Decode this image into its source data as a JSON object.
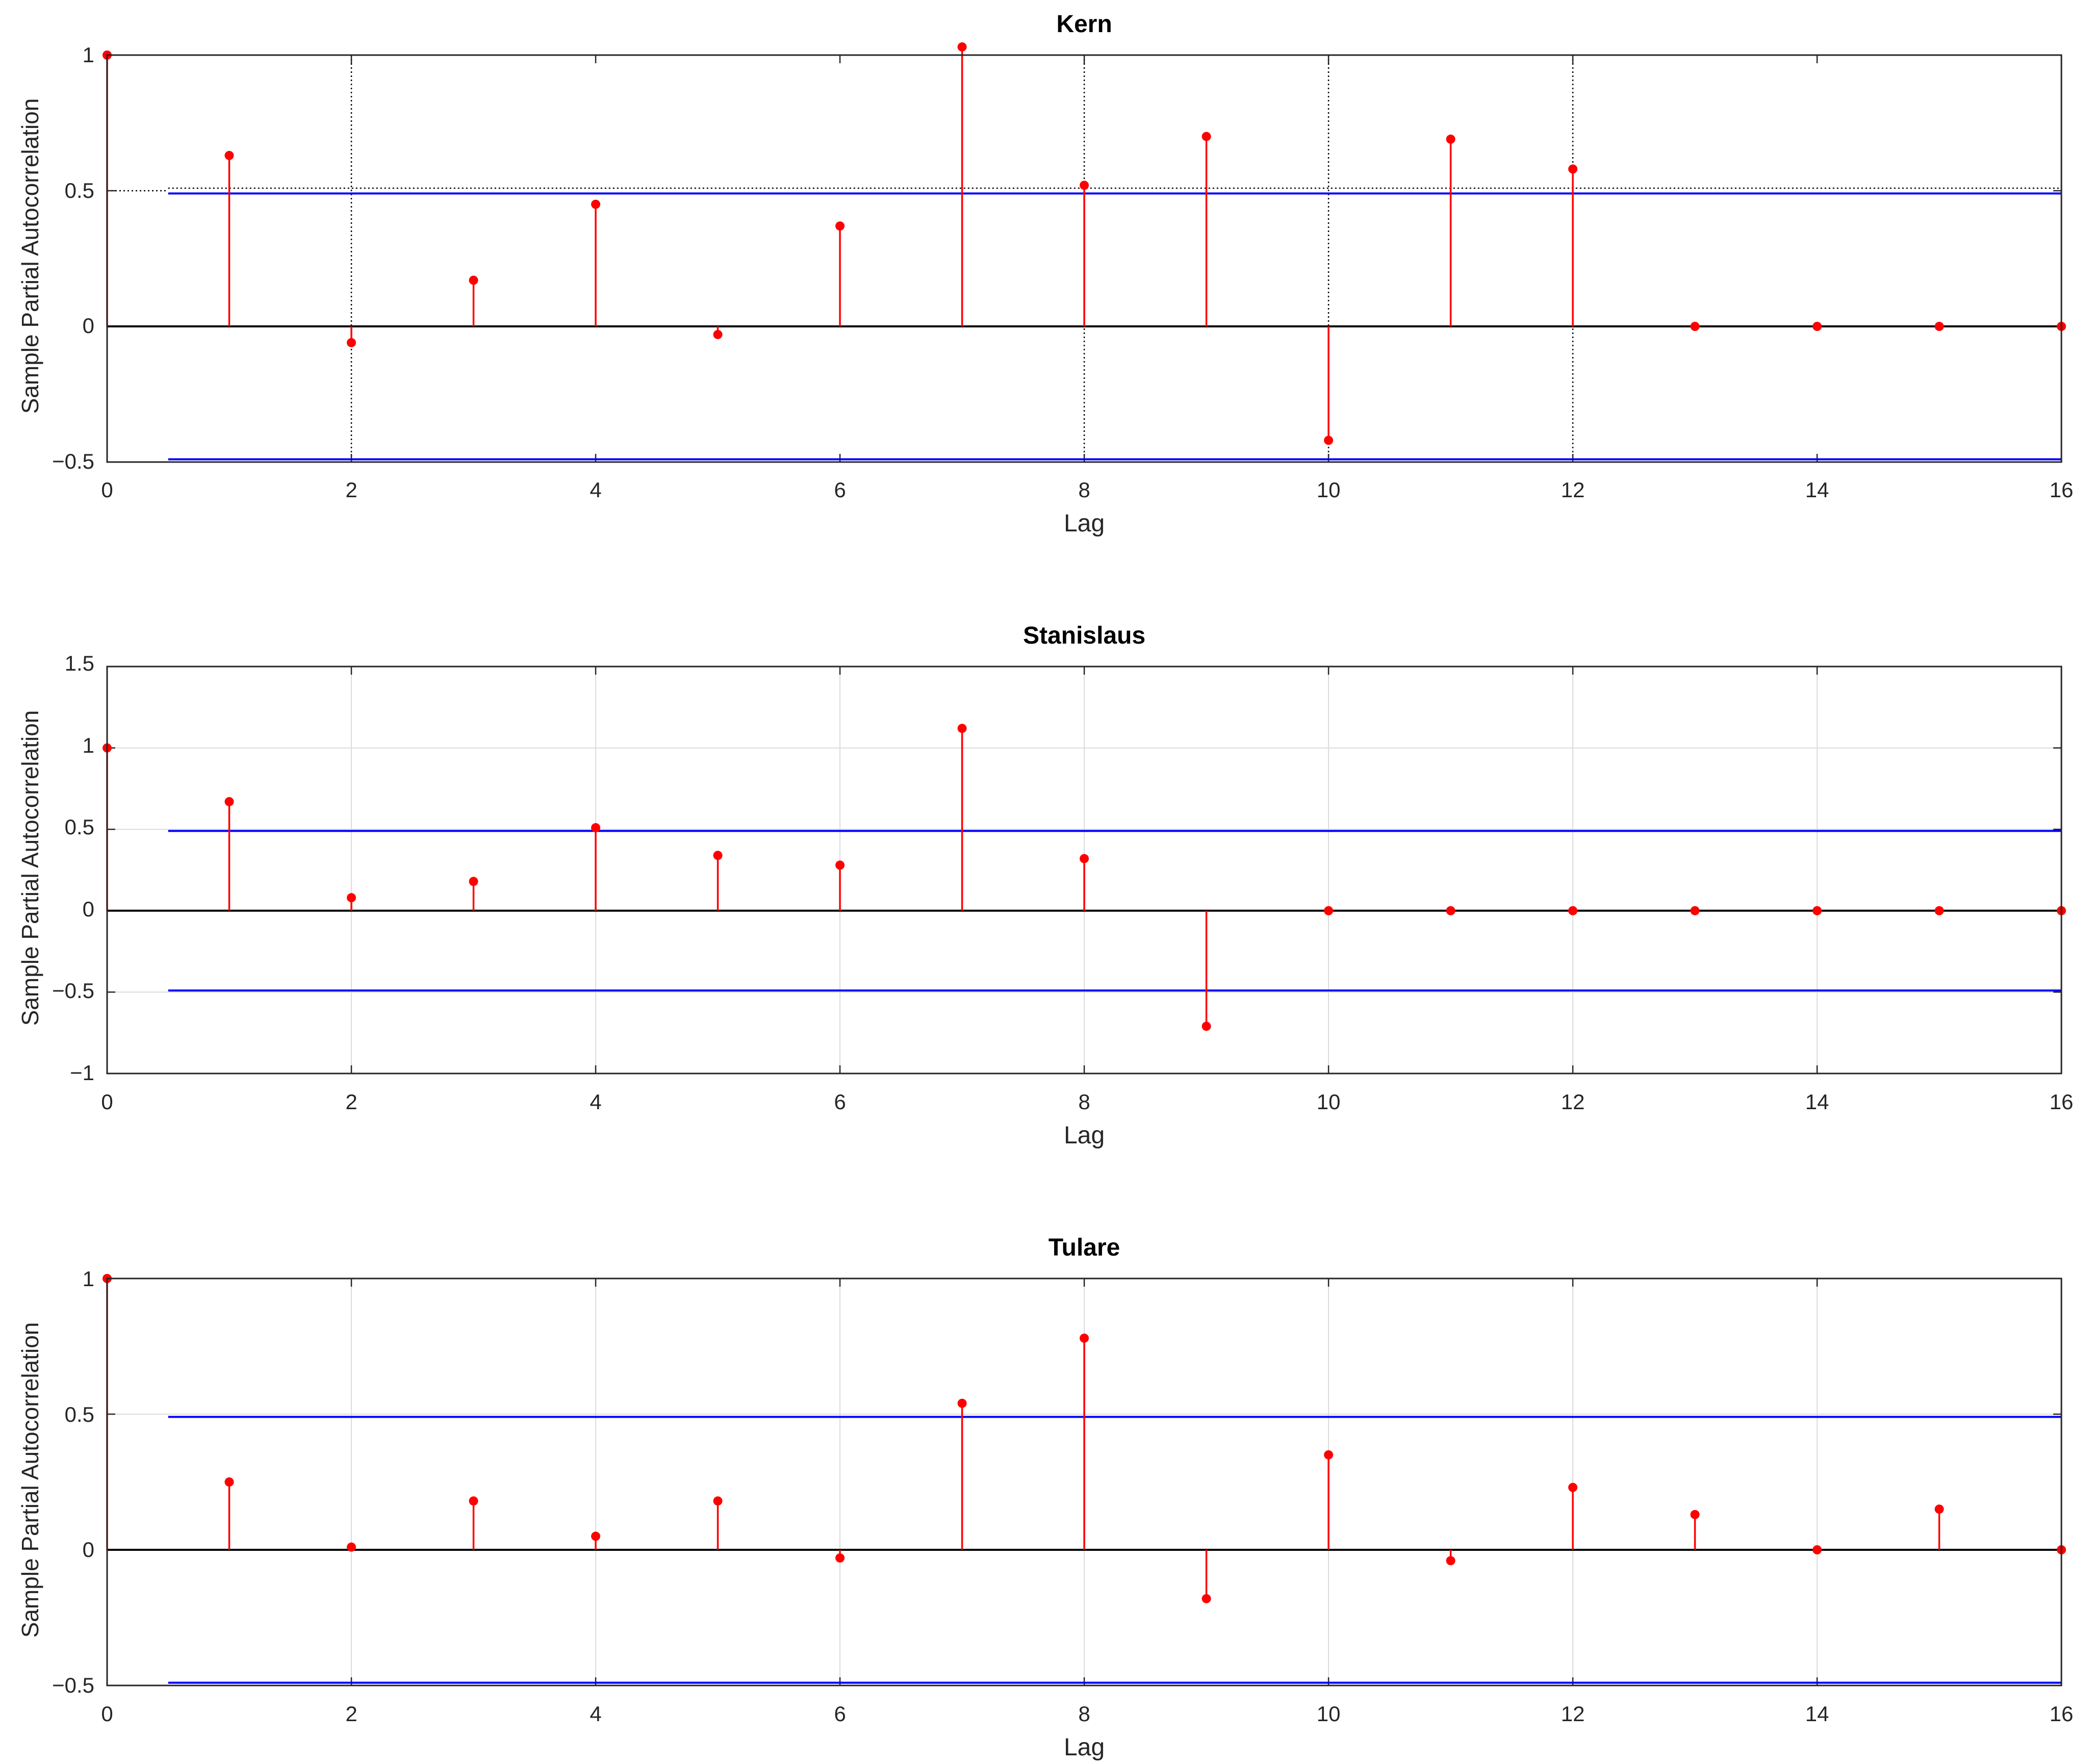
{
  "figure": {
    "background": "#ffffff"
  },
  "chart_data": [
    {
      "type": "stem",
      "title": "Kern",
      "xlabel": "Lag",
      "ylabel": "Sample Partial Autocorrelation",
      "xlim": [
        0,
        16
      ],
      "ylim": [
        -0.5,
        1
      ],
      "xticks": [
        "0",
        "2",
        "4",
        "6",
        "8",
        "10",
        "12",
        "14",
        "16"
      ],
      "yticks": [
        "−0.5",
        "0",
        "0.5",
        "1"
      ],
      "grid": "dotted, partial",
      "series": [
        {
          "x": [
            0,
            1,
            2,
            3,
            4,
            5,
            6,
            7,
            8,
            9,
            10,
            11,
            12,
            13,
            14,
            15,
            16
          ],
          "values": [
            1,
            0.63,
            -0.06,
            0.17,
            0.45,
            -0.03,
            0.37,
            1.03,
            0.52,
            0.7,
            -0.42,
            0.69,
            0.58,
            0,
            0,
            0,
            0
          ],
          "color": "#ff0000"
        }
      ],
      "confidence_bounds": {
        "upper": 0.49,
        "lower": -0.49,
        "x_start": 0.5,
        "color": "#0000ff"
      }
    },
    {
      "type": "stem",
      "title": "Stanislaus",
      "xlabel": "Lag",
      "ylabel": "Sample Partial Autocorrelation",
      "xlim": [
        0,
        16
      ],
      "ylim": [
        -1,
        1.5
      ],
      "xticks": [
        "0",
        "2",
        "4",
        "6",
        "8",
        "10",
        "12",
        "14",
        "16"
      ],
      "yticks": [
        "−1",
        "−0.5",
        "0",
        "0.5",
        "1",
        "1.5"
      ],
      "grid": "on",
      "series": [
        {
          "x": [
            0,
            1,
            2,
            3,
            4,
            5,
            6,
            7,
            8,
            9,
            10,
            11,
            12,
            13,
            14,
            15,
            16
          ],
          "values": [
            1,
            0.67,
            0.08,
            0.18,
            0.51,
            0.34,
            0.28,
            1.12,
            0.32,
            -0.71,
            0,
            0,
            0,
            0,
            0,
            0,
            0
          ],
          "color": "#ff0000"
        }
      ],
      "confidence_bounds": {
        "upper": 0.49,
        "lower": -0.49,
        "x_start": 0.5,
        "color": "#0000ff"
      }
    },
    {
      "type": "stem",
      "title": "Tulare",
      "xlabel": "Lag",
      "ylabel": "Sample Partial Autocorrelation",
      "xlim": [
        0,
        16
      ],
      "ylim": [
        -0.5,
        1
      ],
      "xticks": [
        "0",
        "2",
        "4",
        "6",
        "8",
        "10",
        "12",
        "14",
        "16"
      ],
      "yticks": [
        "−0.5",
        "0",
        "0.5",
        "1"
      ],
      "grid": "on",
      "series": [
        {
          "x": [
            0,
            1,
            2,
            3,
            4,
            5,
            6,
            7,
            8,
            9,
            10,
            11,
            12,
            13,
            14,
            15,
            16
          ],
          "values": [
            1,
            0.25,
            0.01,
            0.18,
            0.05,
            0.18,
            -0.03,
            0.54,
            0.78,
            -0.18,
            0.35,
            -0.04,
            0.23,
            0.13,
            0,
            0.15,
            0
          ],
          "color": "#ff0000"
        }
      ],
      "confidence_bounds": {
        "upper": 0.49,
        "lower": -0.49,
        "x_start": 0.5,
        "color": "#0000ff"
      }
    }
  ]
}
